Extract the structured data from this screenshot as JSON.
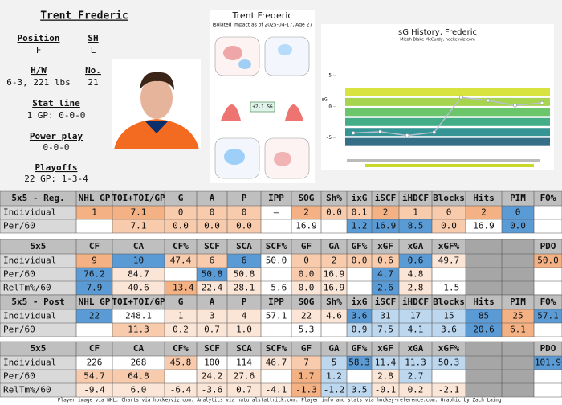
{
  "profile": {
    "name": "Trent Frederic",
    "position_label": "Position",
    "position": "F",
    "shoots_label": "SH",
    "shoots": "L",
    "hw_label": "H/W",
    "hw": "6-3, 221 lbs",
    "number_label": "No.",
    "number": "21",
    "statline_label": "Stat line",
    "statline": "1 GP: 0-0-0",
    "pp_label": "Power play",
    "pp": "0-0-0",
    "playoffs_label": "Playoffs",
    "playoffs": "22 GP: 1-3-4"
  },
  "impact_chart": {
    "title": "Trent Frederic",
    "subtitle": "Isolated Impact as of 2025-04-17, Age 27",
    "net": "+2.1 SG"
  },
  "sg_history": {
    "type": "line",
    "title": "sG History, Frederic",
    "subtitle": "Micah Blake McCurdy, hockeyviz.com",
    "y_label": "sG",
    "ylim": [
      -8,
      10
    ],
    "yticks": [
      5,
      0,
      -5
    ],
    "values": [
      -4.2,
      -4,
      -4.6,
      -4.1,
      1.5,
      1,
      0.2,
      0.6
    ],
    "color": "#b8c0d0"
  },
  "tables": [
    {
      "title": "5x5 - Reg.",
      "columns": [
        "NHL GP",
        "TOI+TOI/GP",
        "G",
        "A",
        "P",
        "IPP",
        "SOG",
        "Sh%",
        "ixG",
        "iSCF",
        "iHDCF",
        "Blocks",
        "Hits",
        "PIM",
        "FO%"
      ],
      "rows": [
        {
          "label": "Individual",
          "cells": [
            "1",
            "7.1",
            "0",
            "0",
            "0",
            "–",
            "2",
            "0.0",
            "0.1",
            "2",
            "1",
            "0",
            "2",
            "0",
            null
          ],
          "fills": [
            "#f4b183",
            "#f4b183",
            "#f8cbad",
            "#f8cbad",
            "#f8cbad",
            null,
            "#f4b183",
            "#f8cbad",
            "#f8cbad",
            "#f4b183",
            "#f8cbad",
            "#f8cbad",
            "#f4b183",
            "#5b9bd5",
            null
          ]
        },
        {
          "label": "Per/60",
          "cells": [
            null,
            "7.1",
            "0.0",
            "0.0",
            "0.0",
            null,
            "16.9",
            null,
            "1.2",
            "16.9",
            "8.5",
            "0.0",
            "16.9",
            "0.0",
            null
          ],
          "fills": [
            null,
            "#f8cbad",
            "#f8cbad",
            "#f8cbad",
            "#f8cbad",
            null,
            null,
            null,
            "#5b9bd5",
            "#5b9bd5",
            "#5b9bd5",
            "#f8cbad",
            null,
            "#5b9bd5",
            null
          ]
        }
      ]
    },
    {
      "title": "5x5",
      "columns": [
        "CF",
        "CA",
        "CF%",
        "SCF",
        "SCA",
        "SCF%",
        "GF",
        "GA",
        "GF%",
        "xGF",
        "xGA",
        "xGF%",
        "PDO"
      ],
      "rows": [
        {
          "label": "Individual",
          "cells": [
            "9",
            "10",
            "47.4",
            "6",
            "6",
            "50.0",
            "0",
            "2",
            "0.0",
            "0.6",
            "0.6",
            "49.7",
            "50.0"
          ],
          "fills": [
            "#f4b183",
            "#5b9bd5",
            "#f8cbad",
            "#f8cbad",
            "#5b9bd5",
            null,
            "#f8cbad",
            "#f8cbad",
            "#f8cbad",
            "#f8cbad",
            "#5b9bd5",
            "#fbe5d6",
            "#f4b183"
          ]
        },
        {
          "label": "Per/60",
          "cells": [
            "76.2",
            "84.7",
            null,
            "50.8",
            "50.8",
            null,
            "0.0",
            "16.9",
            null,
            "4.7",
            "4.8",
            null,
            null
          ],
          "fills": [
            "#5b9bd5",
            "#fbe5d6",
            null,
            "#5b9bd5",
            "#fbe5d6",
            null,
            "#f8cbad",
            "#fbe5d6",
            null,
            "#5b9bd5",
            "#fbe5d6",
            null,
            null
          ]
        },
        {
          "label": "RelTm%/60",
          "cells": [
            "7.9",
            "40.6",
            "-13.4",
            "22.4",
            "28.1",
            "-5.6",
            "0.0",
            "16.9",
            "-",
            "2.6",
            "2.8",
            "-1.5",
            null
          ],
          "fills": [
            "#5b9bd5",
            "#fbe5d6",
            "#f4b183",
            "#fbe5d6",
            "#fbe5d6",
            null,
            "#fbe5d6",
            "#fbe5d6",
            null,
            "#5b9bd5",
            "#fbe5d6",
            null,
            null
          ]
        }
      ]
    },
    {
      "title": "5x5 - Post",
      "columns": [
        "NHL GP",
        "TOI+TOI/GP",
        "G",
        "A",
        "P",
        "IPP",
        "SOG",
        "Sh%",
        "ixG",
        "iSCF",
        "iHDCF",
        "Blocks",
        "Hits",
        "PIM",
        "FO%"
      ],
      "rows": [
        {
          "label": "Individual",
          "cells": [
            "22",
            "248.1",
            "1",
            "3",
            "4",
            "57.1",
            "22",
            "4.6",
            "3.6",
            "31",
            "17",
            "15",
            "85",
            "25",
            "57.1"
          ],
          "fills": [
            "#5b9bd5",
            null,
            "#fbe5d6",
            "#fbe5d6",
            "#fbe5d6",
            null,
            "#fbe5d6",
            "#fbe5d6",
            "#5b9bd5",
            "#bdd7ee",
            "#bdd7ee",
            "#bdd7ee",
            "#5b9bd5",
            "#f4b183",
            "#5b9bd5"
          ]
        },
        {
          "label": "Per/60",
          "cells": [
            null,
            "11.3",
            "0.2",
            "0.7",
            "1.0",
            null,
            "5.3",
            null,
            "0.9",
            "7.5",
            "4.1",
            "3.6",
            "20.6",
            "6.1",
            null
          ],
          "fills": [
            null,
            "#f8cbad",
            "#fbe5d6",
            "#fbe5d6",
            "#fbe5d6",
            null,
            null,
            null,
            "#bdd7ee",
            "#bdd7ee",
            "#bdd7ee",
            "#bdd7ee",
            "#5b9bd5",
            "#f4b183",
            null
          ]
        }
      ]
    },
    {
      "title": "5x5",
      "columns": [
        "CF",
        "CA",
        "CF%",
        "SCF",
        "SCA",
        "SCF%",
        "GF",
        "GA",
        "GF%",
        "xGF",
        "xGA",
        "xGF%",
        "PDO"
      ],
      "rows": [
        {
          "label": "Individual",
          "cells": [
            "226",
            "268",
            "45.8",
            "100",
            "114",
            "46.7",
            "7",
            "5",
            "58.3",
            "11.4",
            "11.3",
            "50.3",
            "101.9"
          ],
          "fills": [
            null,
            null,
            "#f8cbad",
            null,
            null,
            "#fbe5d6",
            "#f8cbad",
            "#bdd7ee",
            "#5b9bd5",
            "#bdd7ee",
            "#bdd7ee",
            "#bdd7ee",
            "#5b9bd5"
          ]
        },
        {
          "label": "Per/60",
          "cells": [
            "54.7",
            "64.8",
            null,
            "24.2",
            "27.6",
            null,
            "1.7",
            "1.2",
            null,
            "2.8",
            "2.7",
            null,
            null
          ],
          "fills": [
            "#f8cbad",
            "#f8cbad",
            null,
            "#fbe5d6",
            "#fbe5d6",
            null,
            "#f4b183",
            "#bdd7ee",
            null,
            "#fbe5d6",
            "#bdd7ee",
            null,
            null
          ]
        },
        {
          "label": "RelTm%/60",
          "cells": [
            "-9.4",
            "6.0",
            "-6.4",
            "-3.6",
            "0.7",
            "-4.1",
            "-1.3",
            "-1.2",
            "3.5",
            "-0.1",
            "0.2",
            "-2.1",
            null
          ],
          "fills": [
            "#fbe5d6",
            "#fbe5d6",
            "#fbe5d6",
            "#fbe5d6",
            "#fbe5d6",
            "#fbe5d6",
            "#f4b183",
            "#bdd7ee",
            "#bdd7ee",
            "#fbe5d6",
            "#fbe5d6",
            "#fbe5d6",
            null
          ]
        }
      ]
    }
  ],
  "footer": "Player image via NHL. Charts via hockeyviz.com. Analytics via naturalstattrick.com. Player info and stats via hockey-reference.com. Graphic by Zach Laing."
}
